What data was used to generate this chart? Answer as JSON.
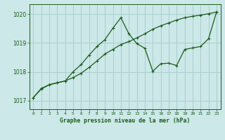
{
  "title": "Graphe pression niveau de la mer (hPa)",
  "background_color": "#cce8e8",
  "grid_color": "#aacece",
  "line_color": "#1a5c1a",
  "xlim": [
    -0.5,
    23.5
  ],
  "ylim": [
    1016.7,
    1020.35
  ],
  "yticks": [
    1017,
    1018,
    1019,
    1020
  ],
  "xticks": [
    0,
    1,
    2,
    3,
    4,
    5,
    6,
    7,
    8,
    9,
    10,
    11,
    12,
    13,
    14,
    15,
    16,
    17,
    18,
    19,
    20,
    21,
    22,
    23
  ],
  "series1_x": [
    0,
    1,
    2,
    3,
    4,
    5,
    6,
    7,
    8,
    9,
    10,
    11,
    12,
    13,
    14,
    15,
    16,
    17,
    18,
    19,
    20,
    21,
    22,
    23
  ],
  "series1_y": [
    1017.1,
    1017.4,
    1017.55,
    1017.62,
    1017.68,
    1017.8,
    1017.95,
    1018.15,
    1018.38,
    1018.62,
    1018.78,
    1018.95,
    1019.05,
    1019.18,
    1019.32,
    1019.48,
    1019.6,
    1019.7,
    1019.8,
    1019.88,
    1019.93,
    1019.97,
    1020.02,
    1020.08
  ],
  "series2_x": [
    0,
    1,
    2,
    3,
    4,
    5,
    6,
    7,
    8,
    9,
    10,
    11,
    12,
    13,
    14,
    15,
    16,
    17,
    18,
    19,
    20,
    21,
    22,
    23
  ],
  "series2_y": [
    1017.1,
    1017.42,
    1017.55,
    1017.62,
    1017.68,
    1018.0,
    1018.25,
    1018.58,
    1018.88,
    1019.12,
    1019.52,
    1019.88,
    1019.32,
    1018.98,
    1018.82,
    1018.02,
    1018.28,
    1018.3,
    1018.22,
    1018.78,
    1018.83,
    1018.88,
    1019.15,
    1020.08
  ]
}
